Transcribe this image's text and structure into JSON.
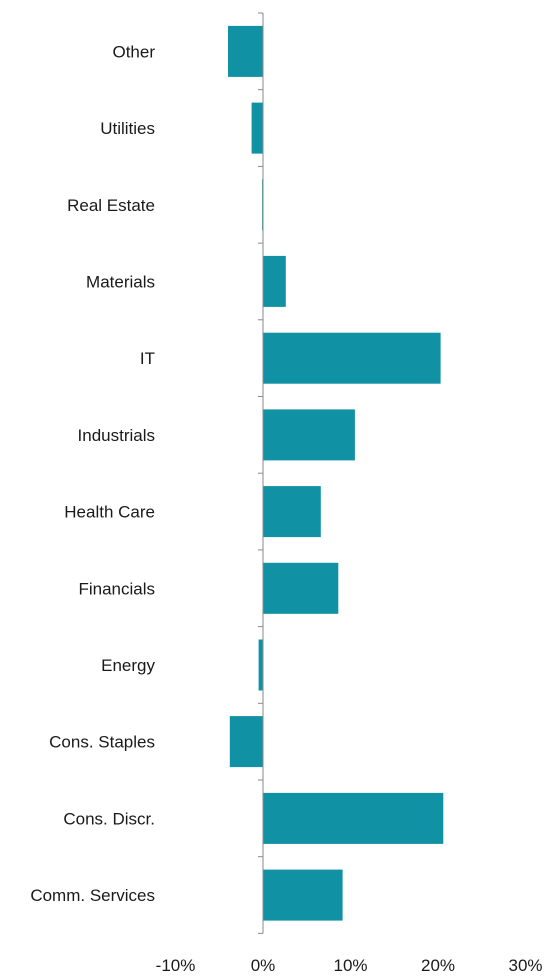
{
  "chart_data": {
    "type": "bar",
    "orientation": "horizontal",
    "categories": [
      "Other",
      "Utilities",
      "Real Estate",
      "Materials",
      "IT",
      "Industrials",
      "Health Care",
      "Financials",
      "Energy",
      "Cons. Staples",
      "Cons. Discr.",
      "Comm. Services"
    ],
    "values": [
      -4.0,
      -1.3,
      -0.1,
      2.6,
      20.3,
      10.5,
      6.6,
      8.6,
      -0.5,
      -3.8,
      20.6,
      9.1
    ],
    "xlim": [
      -10,
      30
    ],
    "xticks": [
      -10,
      0,
      10,
      20,
      30
    ],
    "xtick_labels": [
      "-10%",
      "0%",
      "10%",
      "20%",
      "30%"
    ],
    "grid": false,
    "colors": {
      "bar": "#1191a4",
      "axis": "#8a8a8a"
    }
  }
}
